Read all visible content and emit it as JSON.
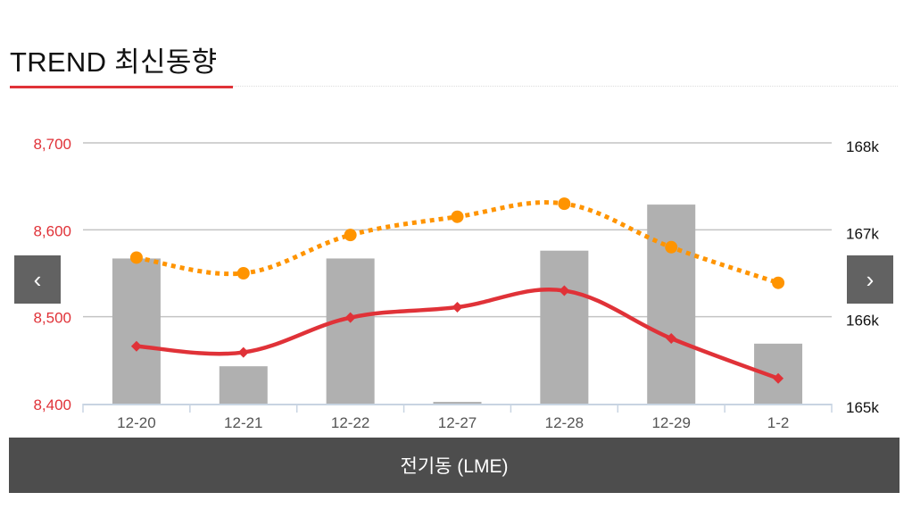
{
  "header": {
    "title": "TREND 최신동향"
  },
  "nav": {
    "prev": "‹",
    "next": "›"
  },
  "footer": {
    "label": "전기동 (LME)"
  },
  "colors": {
    "bar": "#b0b0b0",
    "line": "#e03238",
    "dotted": "#ff9400",
    "left_axis": "#e03238"
  },
  "chart_data": {
    "type": "bar+line",
    "categories": [
      "12-20",
      "12-21",
      "12-22",
      "12-27",
      "12-28",
      "12-29",
      "1-2"
    ],
    "left_axis": {
      "ticks": [
        "8,400",
        "8,500",
        "8,600",
        "8,700"
      ],
      "values": [
        8400,
        8500,
        8600,
        8700
      ],
      "range": [
        8400,
        8700
      ]
    },
    "right_axis": {
      "ticks": [
        "165k",
        "166k",
        "167k",
        "168k"
      ],
      "values": [
        165000,
        166000,
        167000,
        168000
      ],
      "range": [
        165000,
        168000
      ]
    },
    "series": [
      {
        "name": "bars",
        "type": "bar",
        "axis": "right",
        "values": [
          166670,
          165430,
          166670,
          165020,
          166760,
          167290,
          165690
        ]
      },
      {
        "name": "solid-line",
        "type": "line",
        "axis": "left",
        "values": [
          8466,
          8459,
          8499,
          8511,
          8530,
          8475,
          8429
        ]
      },
      {
        "name": "dotted-line",
        "type": "line",
        "axis": "left",
        "values": [
          8568,
          8550,
          8594,
          8615,
          8630,
          8580,
          8539
        ]
      }
    ],
    "grid": true
  }
}
